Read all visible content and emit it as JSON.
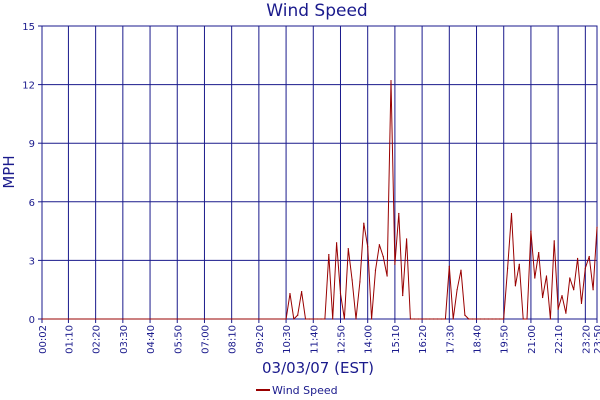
{
  "chart_data": {
    "type": "line",
    "title": "Wind Speed",
    "xlabel": "03/03/07 (EST)",
    "ylabel": "MPH",
    "ylim": [
      0,
      15
    ],
    "y_ticks": [
      0,
      3,
      6,
      9,
      12,
      15
    ],
    "x_tick_labels": [
      "00:02",
      "01:10",
      "02:20",
      "03:30",
      "04:40",
      "05:50",
      "07:00",
      "08:10",
      "09:20",
      "10:30",
      "11:40",
      "12:50",
      "14:00",
      "15:10",
      "16:20",
      "17:30",
      "18:40",
      "19:50",
      "21:00",
      "22:10",
      "23:20",
      "23:50"
    ],
    "grid": true,
    "legend": "bottom-center",
    "colors": {
      "series": "#990000",
      "grid": "#1a1a8c",
      "text": "#1a1a8c"
    },
    "series": [
      {
        "name": "Wind Speed",
        "x": [
          "00:02",
          "10:30",
          "10:40",
          "10:50",
          "11:00",
          "11:10",
          "11:20",
          "11:30",
          "11:40",
          "11:50",
          "12:00",
          "12:10",
          "12:20",
          "12:30",
          "12:40",
          "12:50",
          "13:00",
          "13:10",
          "13:20",
          "13:30",
          "13:40",
          "13:50",
          "14:00",
          "14:10",
          "14:20",
          "14:30",
          "14:40",
          "14:50",
          "15:00",
          "15:10",
          "15:20",
          "15:30",
          "15:40",
          "15:50",
          "16:00",
          "16:10",
          "16:20",
          "16:30",
          "16:40",
          "16:50",
          "17:00",
          "17:10",
          "17:20",
          "17:30",
          "17:40",
          "17:50",
          "18:00",
          "18:10",
          "18:20",
          "18:30",
          "18:40",
          "18:50",
          "19:00",
          "19:10",
          "19:20",
          "19:30",
          "19:40",
          "19:50",
          "20:00",
          "20:10",
          "20:20",
          "20:30",
          "20:40",
          "20:50",
          "21:00",
          "21:10",
          "21:20",
          "21:30",
          "21:40",
          "21:50",
          "22:00",
          "22:10",
          "22:20",
          "22:30",
          "22:40",
          "22:50",
          "23:00",
          "23:10",
          "23:20",
          "23:30",
          "23:40",
          "23:50"
        ],
        "values": [
          0,
          0,
          1.3,
          0,
          0.2,
          1.4,
          0,
          0,
          0,
          0,
          0,
          0,
          3.3,
          0,
          3.9,
          1.3,
          0,
          3.6,
          2,
          0,
          1.9,
          4.9,
          3.7,
          0,
          2.5,
          3.8,
          3.2,
          2.2,
          12.2,
          2.8,
          5.4,
          1.2,
          4.1,
          0,
          0,
          0,
          0,
          0,
          0,
          0,
          0,
          0,
          0,
          2.7,
          0,
          1.5,
          2.5,
          0.2,
          0,
          0,
          0,
          0,
          0,
          0,
          0,
          0,
          0,
          0,
          2.6,
          5.4,
          1.7,
          2.8,
          0,
          0,
          4.5,
          2.1,
          3.4,
          1.1,
          2.2,
          0,
          4,
          0.5,
          1.2,
          0.3,
          2.1,
          1.5,
          3.1,
          0.8,
          2.6,
          3.2,
          1.5,
          4.7
        ]
      }
    ]
  }
}
